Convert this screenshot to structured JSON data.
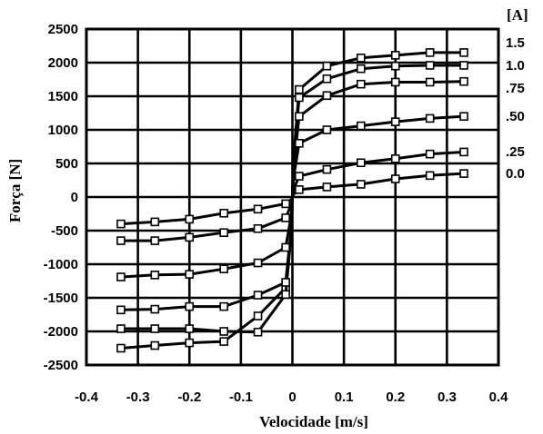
{
  "chart_data": {
    "type": "line",
    "title": "",
    "xlabel": "Velocidade [m/s]",
    "ylabel": "Força [N]",
    "legend_title": "[A]",
    "legend_placement": "right",
    "grid": true,
    "xlim": [
      -0.4,
      0.4
    ],
    "ylim": [
      -2500,
      2500
    ],
    "x_ticks": [
      "-0.4",
      "-0.3",
      "-0.2",
      "-0.1",
      "0",
      "0.1",
      "0.2",
      "0.3",
      "0.4"
    ],
    "y_ticks": [
      "2500",
      "2000",
      "1500",
      "1000",
      "500",
      "0",
      "-500",
      "-1000",
      "-1500",
      "-2000",
      "-2500"
    ],
    "series": [
      {
        "name": "1.5",
        "points": [
          [
            -0.333,
            -2250
          ],
          [
            -0.267,
            -2210
          ],
          [
            -0.2,
            -2170
          ],
          [
            -0.133,
            -2150
          ],
          [
            -0.067,
            -1770
          ],
          [
            -0.013,
            -1350
          ],
          [
            0,
            0
          ],
          [
            0.013,
            1600
          ],
          [
            0.067,
            1950
          ],
          [
            0.133,
            2070
          ],
          [
            0.2,
            2110
          ],
          [
            0.267,
            2150
          ],
          [
            0.333,
            2150
          ]
        ]
      },
      {
        "name": "1.0",
        "points": [
          [
            -0.333,
            -1960
          ],
          [
            -0.267,
            -1960
          ],
          [
            -0.2,
            -1960
          ],
          [
            -0.133,
            -2000
          ],
          [
            -0.067,
            -2010
          ],
          [
            -0.013,
            -1450
          ],
          [
            0,
            0
          ],
          [
            0.013,
            1480
          ],
          [
            0.067,
            1760
          ],
          [
            0.133,
            1910
          ],
          [
            0.2,
            1950
          ],
          [
            0.267,
            1960
          ],
          [
            0.333,
            1960
          ]
        ]
      },
      {
        "name": ".75",
        "points": [
          [
            -0.333,
            -1680
          ],
          [
            -0.267,
            -1670
          ],
          [
            -0.2,
            -1630
          ],
          [
            -0.133,
            -1630
          ],
          [
            -0.067,
            -1460
          ],
          [
            -0.013,
            -1270
          ],
          [
            0,
            0
          ],
          [
            0.013,
            1200
          ],
          [
            0.067,
            1510
          ],
          [
            0.133,
            1680
          ],
          [
            0.2,
            1710
          ],
          [
            0.267,
            1710
          ],
          [
            0.333,
            1720
          ]
        ]
      },
      {
        "name": ".50",
        "points": [
          [
            -0.333,
            -1190
          ],
          [
            -0.267,
            -1160
          ],
          [
            -0.2,
            -1150
          ],
          [
            -0.133,
            -1070
          ],
          [
            -0.067,
            -980
          ],
          [
            -0.013,
            -750
          ],
          [
            0,
            0
          ],
          [
            0.013,
            800
          ],
          [
            0.067,
            1000
          ],
          [
            0.133,
            1060
          ],
          [
            0.2,
            1120
          ],
          [
            0.267,
            1170
          ],
          [
            0.333,
            1200
          ]
        ]
      },
      {
        "name": ".25",
        "points": [
          [
            -0.333,
            -650
          ],
          [
            -0.267,
            -650
          ],
          [
            -0.2,
            -600
          ],
          [
            -0.133,
            -530
          ],
          [
            -0.067,
            -470
          ],
          [
            -0.013,
            -310
          ],
          [
            0,
            0
          ],
          [
            0.013,
            310
          ],
          [
            0.067,
            410
          ],
          [
            0.133,
            510
          ],
          [
            0.2,
            570
          ],
          [
            0.267,
            640
          ],
          [
            0.333,
            670
          ]
        ]
      },
      {
        "name": "0.0",
        "points": [
          [
            -0.333,
            -400
          ],
          [
            -0.267,
            -370
          ],
          [
            -0.2,
            -330
          ],
          [
            -0.133,
            -240
          ],
          [
            -0.067,
            -180
          ],
          [
            -0.013,
            -100
          ],
          [
            0,
            0
          ],
          [
            0.013,
            110
          ],
          [
            0.067,
            150
          ],
          [
            0.133,
            190
          ],
          [
            0.2,
            270
          ],
          [
            0.267,
            320
          ],
          [
            0.333,
            350
          ]
        ]
      }
    ]
  }
}
